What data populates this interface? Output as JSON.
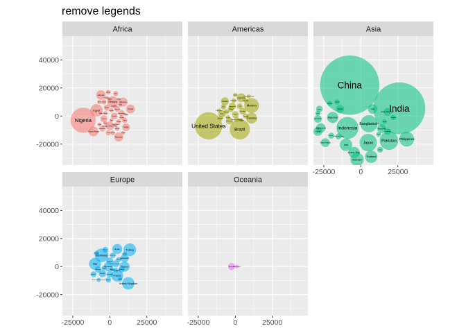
{
  "chart_data": {
    "type": "scatter",
    "title": "remove legends",
    "xlabel": "",
    "ylabel": "",
    "xlim": [
      -32000,
      49000
    ],
    "ylim": [
      -35000,
      57000
    ],
    "x_ticks": [
      -25000,
      0,
      25000
    ],
    "x_tick_labels": [
      "-25000",
      "0",
      "25000"
    ],
    "y_ticks": [
      -20000,
      0,
      20000,
      40000
    ],
    "y_tick_labels": [
      "-20000",
      "0",
      "20000",
      "40000"
    ],
    "grid": true,
    "legend": "none",
    "colors": {
      "panel_background": "#ebebeb",
      "strip_background": "#d9d9d9",
      "grid": "#ffffff",
      "Africa": "#F8766D",
      "Americas": "#A3A500",
      "Asia": "#00BF7D",
      "Europe": "#00B0F6",
      "Oceania": "#E76BF3"
    },
    "panels": [
      {
        "name": "Africa",
        "points": [
          {
            "x": -18000,
            "y": -3000,
            "r": 8500,
            "label": "Nigeria"
          },
          {
            "x": -9000,
            "y": 4000,
            "r": 4200,
            "label": "Egypt"
          },
          {
            "x": 2000,
            "y": 10000,
            "r": 3800,
            "label": "Ethiopia"
          },
          {
            "x": -6000,
            "y": 15000,
            "r": 3200,
            "label": "Algeria"
          },
          {
            "x": 9000,
            "y": 10000,
            "r": 3000,
            "label": "Morocco"
          },
          {
            "x": 14000,
            "y": 5000,
            "r": 3000,
            "label": "Kenya"
          },
          {
            "x": -11000,
            "y": -11000,
            "r": 3300,
            "label": "South Africa"
          },
          {
            "x": 0,
            "y": -7000,
            "r": 2900,
            "label": "Congo, Dem. Rep."
          },
          {
            "x": 6000,
            "y": -15000,
            "r": 3000,
            "label": "Tanzania"
          },
          {
            "x": 11000,
            "y": -8000,
            "r": 2600,
            "label": "Sudan"
          },
          {
            "x": -4000,
            "y": -2000,
            "r": 2400,
            "label": "Ghana"
          },
          {
            "x": 3000,
            "y": 0,
            "r": 2300,
            "label": "Uganda"
          },
          {
            "x": 8000,
            "y": 2000,
            "r": 2100,
            "label": "Mozambique"
          },
          {
            "x": -2000,
            "y": 6000,
            "r": 2000,
            "label": "Angola"
          },
          {
            "x": 5000,
            "y": 5000,
            "r": 1900,
            "label": "Cameroon"
          },
          {
            "x": -5000,
            "y": -9000,
            "r": 2000,
            "label": "Madagascar"
          },
          {
            "x": 10000,
            "y": -3000,
            "r": 1900,
            "label": "Mali"
          },
          {
            "x": 4000,
            "y": 16000,
            "r": 1700,
            "label": "Niger"
          },
          {
            "x": -1000,
            "y": 17000,
            "r": 1600,
            "label": "Malawi"
          },
          {
            "x": -4000,
            "y": 10000,
            "r": 1700,
            "label": "Zambia"
          },
          {
            "x": 6000,
            "y": -4000,
            "r": 1600,
            "label": "Senegal"
          },
          {
            "x": -1000,
            "y": -12000,
            "r": 1700,
            "label": "Chad"
          },
          {
            "x": 2000,
            "y": -12000,
            "r": 1500,
            "label": "Guinea"
          },
          {
            "x": 5000,
            "y": -9000,
            "r": 1500,
            "label": "Rwanda"
          },
          {
            "x": -7000,
            "y": 10000,
            "r": 1400,
            "label": "Benin"
          },
          {
            "x": 8000,
            "y": -1000,
            "r": 1400,
            "label": "Burundi"
          },
          {
            "x": -3000,
            "y": 2000,
            "r": 1400,
            "label": "Tunisia"
          },
          {
            "x": 1000,
            "y": 4000,
            "r": 1400,
            "label": "Somalia"
          },
          {
            "x": 1000,
            "y": -3000,
            "r": 1300,
            "label": "Togo"
          },
          {
            "x": -7000,
            "y": -6000,
            "r": 1300,
            "label": "Libya"
          },
          {
            "x": 4000,
            "y": -6000,
            "r": 1200,
            "label": "Sierra Leone"
          },
          {
            "x": 7000,
            "y": 8000,
            "r": 1300,
            "label": "Eritrea"
          },
          {
            "x": -3000,
            "y": -5000,
            "r": 1200,
            "label": "Liberia"
          },
          {
            "x": 3000,
            "y": 7000,
            "r": 1100,
            "label": "Mauritania"
          },
          {
            "x": 9000,
            "y": -12000,
            "r": 1200,
            "label": "Namibia"
          },
          {
            "x": -2000,
            "y": 13000,
            "r": 1100,
            "label": "Botswana"
          },
          {
            "x": 6000,
            "y": 12000,
            "r": 1000,
            "label": "Lesotho"
          },
          {
            "x": -6000,
            "y": 2000,
            "r": 1100,
            "label": "Gabon"
          },
          {
            "x": 11000,
            "y": 1000,
            "r": 1000,
            "label": "Gambia"
          },
          {
            "x": 0,
            "y": 12000,
            "r": 1000,
            "label": "Djibouti"
          }
        ]
      },
      {
        "name": "Americas",
        "points": [
          {
            "x": -18000,
            "y": -7000,
            "r": 9200,
            "label": "United States"
          },
          {
            "x": 3000,
            "y": -9500,
            "r": 6800,
            "label": "Brazil"
          },
          {
            "x": 11000,
            "y": 7500,
            "r": 5000,
            "label": "Mexico"
          },
          {
            "x": 11000,
            "y": -1500,
            "r": 3700,
            "label": "Colombia"
          },
          {
            "x": 4000,
            "y": 13000,
            "r": 3000,
            "label": "Argentina"
          },
          {
            "x": -7000,
            "y": 10500,
            "r": 2700,
            "label": "Canada"
          },
          {
            "x": -9000,
            "y": 1500,
            "r": 2500,
            "label": "Peru"
          },
          {
            "x": -2000,
            "y": 7000,
            "r": 2400,
            "label": "Venezuela"
          },
          {
            "x": 0,
            "y": 1000,
            "r": 2300,
            "label": "Chile"
          },
          {
            "x": -4000,
            "y": -3500,
            "r": 2300,
            "label": "Guatemala"
          },
          {
            "x": 5000,
            "y": 3500,
            "r": 2300,
            "label": "Ecuador"
          },
          {
            "x": -3000,
            "y": 5000,
            "r": 2000,
            "label": "Bolivia"
          },
          {
            "x": 3000,
            "y": 7000,
            "r": 1900,
            "label": "Cuba"
          },
          {
            "x": -8000,
            "y": 6500,
            "r": 1800,
            "label": "Haiti"
          },
          {
            "x": 1000,
            "y": -2500,
            "r": 1800,
            "label": "Dominican Republic"
          },
          {
            "x": -6000,
            "y": 3000,
            "r": 1700,
            "label": "Honduras"
          },
          {
            "x": 7000,
            "y": 0,
            "r": 1700,
            "label": "Paraguay"
          },
          {
            "x": -10000,
            "y": -1500,
            "r": 1600,
            "label": "Nicaragua"
          },
          {
            "x": -1000,
            "y": 11000,
            "r": 1500,
            "label": "El Salvador"
          },
          {
            "x": 7000,
            "y": 11000,
            "r": 1500,
            "label": "Costa Rica"
          },
          {
            "x": -5000,
            "y": -1000,
            "r": 1400,
            "label": "Panama"
          },
          {
            "x": 4000,
            "y": -3000,
            "r": 1400,
            "label": "Uruguay"
          },
          {
            "x": 0,
            "y": 15000,
            "r": 1400,
            "label": "Jamaica"
          },
          {
            "x": 9000,
            "y": 14000,
            "r": 1300,
            "label": "Trinidad and Tobago"
          },
          {
            "x": -11000,
            "y": 4000,
            "r": 1300,
            "label": "Puerto Rico"
          }
        ]
      },
      {
        "name": "Asia",
        "points": [
          {
            "x": -7500,
            "y": 22000,
            "r": 20000,
            "label": "China"
          },
          {
            "x": 26000,
            "y": 5500,
            "r": 17500,
            "label": "India"
          },
          {
            "x": -9000,
            "y": -8500,
            "r": 7400,
            "label": "Indonesia"
          },
          {
            "x": 19000,
            "y": -17500,
            "r": 6300,
            "label": "Pakistan"
          },
          {
            "x": 5000,
            "y": -19000,
            "r": 5900,
            "label": "Japan"
          },
          {
            "x": 5500,
            "y": -5500,
            "r": 5800,
            "label": "Bangladesh"
          },
          {
            "x": 31000,
            "y": -16500,
            "r": 5000,
            "label": "Philippines"
          },
          {
            "x": -2500,
            "y": -31000,
            "r": 4500,
            "label": "Vietnam"
          },
          {
            "x": 7000,
            "y": -29000,
            "r": 4200,
            "label": "Thailand"
          },
          {
            "x": -10000,
            "y": -20500,
            "r": 4200,
            "label": "Iran"
          },
          {
            "x": -19000,
            "y": -1000,
            "r": 3800,
            "label": "Myanmar"
          },
          {
            "x": -4500,
            "y": -26000,
            "r": 3800,
            "label": "Korea, Rep."
          },
          {
            "x": 8000,
            "y": 5000,
            "r": 3200,
            "label": "Iraq"
          },
          {
            "x": -27000,
            "y": -8500,
            "r": 3200,
            "label": "Afghanistan"
          },
          {
            "x": -24000,
            "y": -19000,
            "r": 3000,
            "label": "Saudi Arabia"
          },
          {
            "x": -29000,
            "y": -11000,
            "r": 3000,
            "label": "Nepal"
          },
          {
            "x": 14000,
            "y": -9000,
            "r": 3000,
            "label": "Malaysia"
          },
          {
            "x": -14000,
            "y": 5000,
            "r": 2700,
            "label": "Yemen"
          },
          {
            "x": 18000,
            "y": 3000,
            "r": 2600,
            "label": "Korea, Dem. Rep."
          },
          {
            "x": -29000,
            "y": -2000,
            "r": 2600,
            "label": "Sri Lanka"
          },
          {
            "x": -28000,
            "y": 5000,
            "r": 2200,
            "label": "Syria"
          },
          {
            "x": 18000,
            "y": -11000,
            "r": 2300,
            "label": "Cambodia"
          },
          {
            "x": -20000,
            "y": -14000,
            "r": 2000,
            "label": "Taiwan"
          },
          {
            "x": 13000,
            "y": -24000,
            "r": 2000,
            "label": "Jordan"
          },
          {
            "x": -15000,
            "y": -14500,
            "r": 2000,
            "label": "Hong Kong, China"
          },
          {
            "x": -29000,
            "y": 2000,
            "r": 1700,
            "label": "Israel"
          },
          {
            "x": -16000,
            "y": 10000,
            "r": 1700,
            "label": "Lebanon"
          },
          {
            "x": 22000,
            "y": -1000,
            "r": 1700,
            "label": "Mongolia"
          },
          {
            "x": 12000,
            "y": -13000,
            "r": 1600,
            "label": "Oman"
          },
          {
            "x": 16000,
            "y": -4000,
            "r": 1600,
            "label": "Kuwait"
          },
          {
            "x": -21000,
            "y": 9000,
            "r": 1600,
            "label": "Singapore"
          }
        ]
      },
      {
        "name": "Europe",
        "points": [
          {
            "x": -5500,
            "y": 8000,
            "r": 4600,
            "label": "Germany"
          },
          {
            "x": 13500,
            "y": 12000,
            "r": 4300,
            "label": "Turkey"
          },
          {
            "x": -10000,
            "y": 2000,
            "r": 4000,
            "label": "Italy"
          },
          {
            "x": 5000,
            "y": -6500,
            "r": 4000,
            "label": "France"
          },
          {
            "x": 12500,
            "y": -12000,
            "r": 4200,
            "label": "United Kingdom"
          },
          {
            "x": 10000,
            "y": 0,
            "r": 3400,
            "label": "Poland"
          },
          {
            "x": 5000,
            "y": 12500,
            "r": 3400,
            "label": "Spain"
          },
          {
            "x": -1000,
            "y": 0,
            "r": 3100,
            "label": "Romania"
          },
          {
            "x": 10000,
            "y": 6000,
            "r": 2700,
            "label": "Netherlands"
          },
          {
            "x": -5000,
            "y": -5000,
            "r": 2500,
            "label": "Greece"
          },
          {
            "x": 0,
            "y": 4000,
            "r": 2400,
            "label": "Belgium"
          },
          {
            "x": 4000,
            "y": 2000,
            "r": 2400,
            "label": "Czech Republic"
          },
          {
            "x": -8000,
            "y": -2000,
            "r": 2200,
            "label": "Portugal"
          },
          {
            "x": 0,
            "y": -5500,
            "r": 2200,
            "label": "Hungary"
          },
          {
            "x": 8000,
            "y": -2000,
            "r": 2100,
            "label": "Sweden"
          },
          {
            "x": -3000,
            "y": 12000,
            "r": 2000,
            "label": "Serbia"
          },
          {
            "x": -11000,
            "y": -5500,
            "r": 2000,
            "label": "Austria"
          },
          {
            "x": 2000,
            "y": 8000,
            "r": 1900,
            "label": "Switzerland"
          },
          {
            "x": -1000,
            "y": -9500,
            "r": 1800,
            "label": "Bulgaria"
          },
          {
            "x": 6000,
            "y": 5000,
            "r": 1700,
            "label": "Denmark"
          },
          {
            "x": -9000,
            "y": 9500,
            "r": 1700,
            "label": "Finland"
          },
          {
            "x": 4000,
            "y": -2500,
            "r": 1600,
            "label": "Slovak Republic"
          },
          {
            "x": 10000,
            "y": 9000,
            "r": 1500,
            "label": "Norway"
          },
          {
            "x": -4000,
            "y": -1000,
            "r": 1500,
            "label": "Ireland"
          },
          {
            "x": 7000,
            "y": -9000,
            "r": 1500,
            "label": "Croatia"
          },
          {
            "x": -7500,
            "y": -9500,
            "r": 1400,
            "label": "Bosnia and Herzegovina"
          },
          {
            "x": 1500,
            "y": -2000,
            "r": 1400,
            "label": "Albania"
          }
        ]
      },
      {
        "name": "Oceania",
        "points": [
          {
            "x": -2500,
            "y": 0,
            "r": 2400,
            "label": "Australia"
          },
          {
            "x": 1000,
            "y": 0,
            "r": 1200,
            "label": "New Zealand"
          }
        ]
      }
    ]
  }
}
